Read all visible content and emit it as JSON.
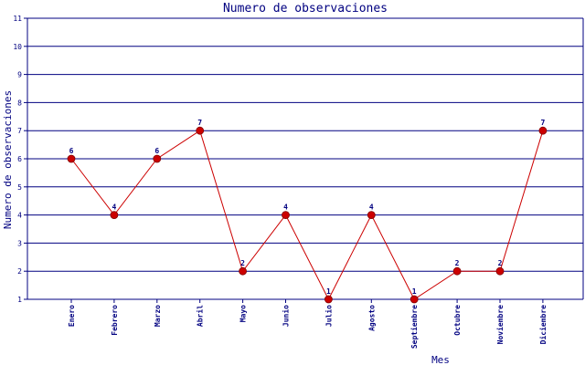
{
  "chart_data": {
    "type": "line",
    "title": "Numero de observaciones",
    "xlabel": "Mes",
    "ylabel": "Numero de observaciones",
    "categories": [
      "Enero",
      "Febrero",
      "Marzo",
      "Abril",
      "Mayo",
      "Junio",
      "Julio",
      "Agosto",
      "Septiembre",
      "Octubre",
      "Noviembre",
      "Diciembre"
    ],
    "values": [
      6,
      4,
      6,
      7,
      2,
      4,
      1,
      4,
      1,
      2,
      2,
      7
    ],
    "ylim": [
      1,
      11
    ],
    "yticks": [
      1,
      2,
      3,
      4,
      5,
      6,
      7,
      8,
      9,
      10,
      11
    ],
    "grid": true,
    "data_labels": true,
    "colors": {
      "line": "#cc0000",
      "marker": "#cc0000",
      "grid": "#000080",
      "axis": "#000080",
      "text": "#000080"
    }
  }
}
